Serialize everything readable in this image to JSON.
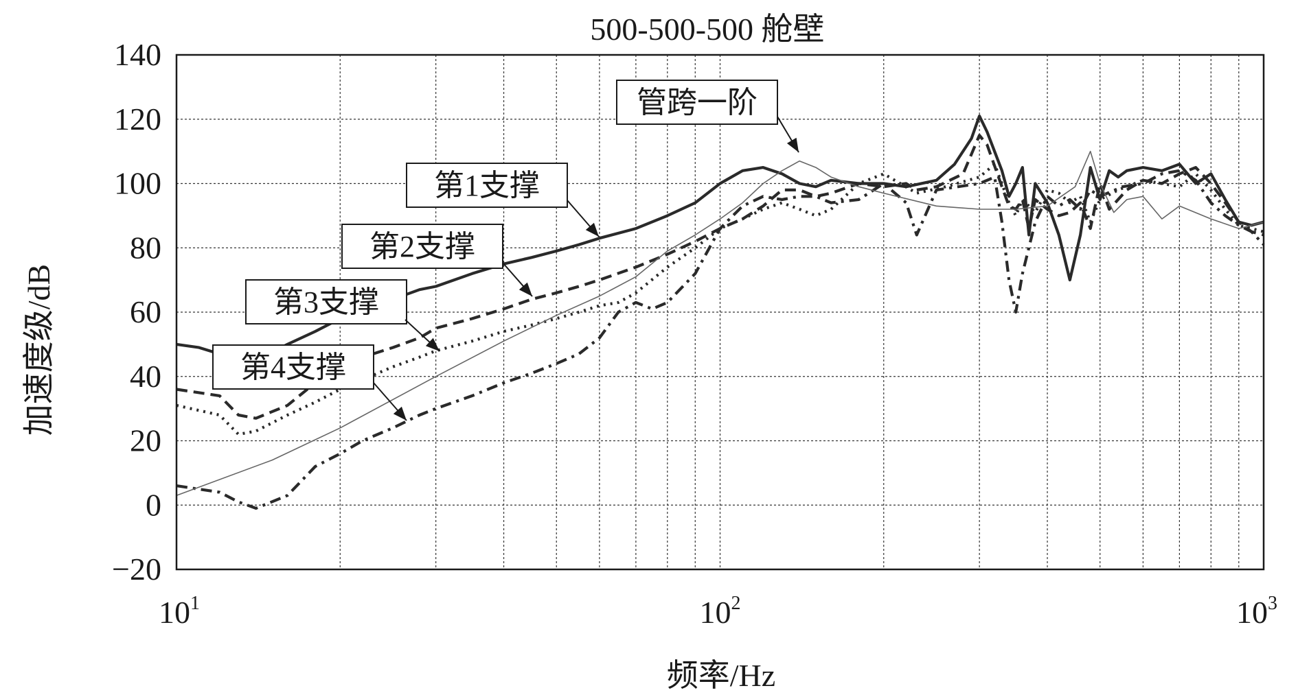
{
  "chart_data": {
    "type": "line",
    "title": "500-500-500 舱壁",
    "xlabel": "频率/Hz",
    "ylabel": "加速度级/dB",
    "x_scale": "log",
    "xlim": [
      10,
      1000
    ],
    "ylim": [
      -20,
      140
    ],
    "grid": true,
    "x_ticks": [
      {
        "value": 10,
        "base": "10",
        "exp": "1"
      },
      {
        "value": 100,
        "base": "10",
        "exp": "2"
      },
      {
        "value": 1000,
        "base": "10",
        "exp": "3"
      }
    ],
    "y_ticks": [
      "140",
      "120",
      "100",
      "80",
      "60",
      "40",
      "20",
      "0",
      "−20"
    ],
    "series": [
      {
        "name": "第1支撑",
        "style": "solid",
        "x": [
          10,
          11,
          12,
          13,
          14,
          16,
          18,
          20,
          22,
          25,
          28,
          30,
          35,
          40,
          45,
          50,
          55,
          60,
          70,
          80,
          90,
          100,
          110,
          120,
          130,
          140,
          150,
          160,
          180,
          200,
          220,
          250,
          270,
          290,
          300,
          310,
          330,
          340,
          350,
          360,
          370,
          380,
          400,
          420,
          440,
          460,
          480,
          500,
          520,
          540,
          560,
          600,
          650,
          700,
          750,
          800,
          850,
          900,
          950,
          1000
        ],
        "y": [
          50,
          49,
          47,
          44,
          45,
          50,
          54,
          58,
          61,
          64,
          67,
          68,
          72,
          75,
          77,
          79,
          81,
          83,
          86,
          90,
          94,
          100,
          104,
          105,
          103,
          100,
          99,
          101,
          100,
          100,
          99,
          101,
          106,
          114,
          121,
          116,
          104,
          96,
          100,
          105,
          84,
          100,
          94,
          84,
          70,
          84,
          105,
          95,
          104,
          102,
          104,
          105,
          104,
          106,
          100,
          103,
          95,
          88,
          87,
          88
        ]
      },
      {
        "name": "第2支撑",
        "style": "dash",
        "x": [
          10,
          12,
          13,
          14,
          16,
          18,
          20,
          22,
          25,
          28,
          30,
          35,
          40,
          45,
          50,
          55,
          60,
          70,
          80,
          90,
          100,
          110,
          120,
          130,
          140,
          150,
          160,
          180,
          200,
          220,
          230,
          250,
          280,
          300,
          310,
          330,
          340,
          350,
          360,
          370,
          380,
          400,
          420,
          440,
          460,
          480,
          500,
          520,
          560,
          600,
          650,
          700,
          750,
          800,
          850,
          900,
          950,
          1000
        ],
        "y": [
          36,
          34,
          28,
          27,
          31,
          38,
          42,
          46,
          49,
          52,
          55,
          58,
          61,
          64,
          66,
          68,
          70,
          74,
          78,
          82,
          86,
          89,
          93,
          98,
          98,
          96,
          97,
          100,
          99,
          100,
          98,
          99,
          103,
          115,
          112,
          99,
          93,
          92,
          95,
          86,
          95,
          92,
          90,
          91,
          94,
          86,
          100,
          92,
          98,
          101,
          100,
          103,
          105,
          100,
          94,
          88,
          85,
          84
        ]
      },
      {
        "name": "第3支撑",
        "style": "dot",
        "x": [
          10,
          12,
          13,
          14,
          16,
          18,
          20,
          22,
          25,
          28,
          30,
          35,
          40,
          45,
          50,
          55,
          60,
          65,
          70,
          80,
          90,
          100,
          110,
          120,
          130,
          140,
          150,
          160,
          180,
          200,
          230,
          260,
          300,
          320,
          340,
          350,
          360,
          380,
          400,
          420,
          440,
          460,
          480,
          500,
          540,
          600,
          650,
          700,
          750,
          800,
          850,
          900,
          950,
          1000
        ],
        "y": [
          31,
          28,
          22,
          23,
          28,
          32,
          36,
          39,
          43,
          46,
          48,
          51,
          54,
          56,
          58,
          60,
          62,
          63,
          66,
          74,
          80,
          86,
          89,
          92,
          94,
          92,
          90,
          92,
          100,
          103,
          97,
          99,
          102,
          106,
          94,
          90,
          95,
          91,
          98,
          97,
          94,
          96,
          88,
          95,
          98,
          101,
          100,
          99,
          103,
          98,
          92,
          87,
          86,
          85
        ]
      },
      {
        "name": "第4支撑",
        "style": "dashdot",
        "x": [
          10,
          12,
          13,
          14,
          16,
          18,
          20,
          22,
          25,
          28,
          30,
          35,
          40,
          45,
          50,
          55,
          60,
          65,
          70,
          75,
          80,
          90,
          100,
          110,
          120,
          130,
          140,
          150,
          160,
          180,
          200,
          220,
          230,
          250,
          300,
          320,
          330,
          340,
          350,
          360,
          380,
          400,
          420,
          440,
          460,
          480,
          500,
          550,
          600,
          650,
          700,
          750,
          800,
          850,
          900,
          950,
          1000
        ],
        "y": [
          6,
          4,
          1,
          -1,
          3,
          12,
          16,
          20,
          24,
          28,
          30,
          34,
          38,
          41,
          44,
          47,
          52,
          60,
          63,
          61,
          63,
          72,
          86,
          93,
          96,
          95,
          96,
          96,
          94,
          95,
          100,
          94,
          84,
          98,
          100,
          102,
          88,
          70,
          60,
          72,
          88,
          96,
          93,
          95,
          92,
          98,
          96,
          99,
          100,
          103,
          104,
          101,
          94,
          90,
          87,
          85,
          81
        ]
      },
      {
        "name": "管跨一阶",
        "style": "thin",
        "x": [
          10,
          15,
          20,
          30,
          40,
          50,
          60,
          70,
          80,
          90,
          100,
          110,
          120,
          130,
          140,
          150,
          160,
          180,
          200,
          250,
          300,
          350,
          400,
          450,
          480,
          500,
          530,
          560,
          600,
          650,
          700,
          800,
          900,
          1000
        ],
        "y": [
          3,
          14,
          24,
          40,
          51,
          59,
          65,
          71,
          79,
          84,
          89,
          94,
          100,
          104,
          107,
          105,
          102,
          99,
          97,
          93,
          92,
          92,
          93,
          99,
          110,
          100,
          91,
          95,
          96,
          89,
          93,
          89,
          86,
          88
        ]
      }
    ],
    "annotations": [
      {
        "text": "管跨一阶",
        "target_series": "管跨一阶"
      },
      {
        "text": "第1支撑",
        "target_series": "第1支撑"
      },
      {
        "text": "第2支撑",
        "target_series": "第2支撑"
      },
      {
        "text": "第3支撑",
        "target_series": "第3支撑"
      },
      {
        "text": "第4支撑",
        "target_series": "第4支撑"
      }
    ]
  }
}
